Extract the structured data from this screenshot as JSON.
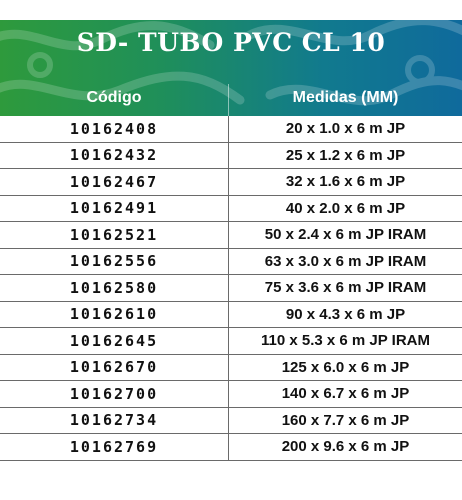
{
  "title": "SD- TUBO PVC CL 10",
  "columns": {
    "code": "Código",
    "measure": "Medidas (MM)"
  },
  "colors": {
    "header_start": "#2e9a3c",
    "header_end": "#0f6a9c",
    "text": "#111111"
  },
  "rows": [
    {
      "code": "10162408",
      "measure": "20 x 1.0 x 6 m JP"
    },
    {
      "code": "10162432",
      "measure": "25 x 1.2 x 6 m JP"
    },
    {
      "code": "10162467",
      "measure": "32 x 1.6 x 6 m JP"
    },
    {
      "code": "10162491",
      "measure": "40 x 2.0 x 6 m JP"
    },
    {
      "code": "10162521",
      "measure": "50 x 2.4 x 6 m JP IRAM"
    },
    {
      "code": "10162556",
      "measure": "63 x 3.0 x 6 m JP IRAM"
    },
    {
      "code": "10162580",
      "measure": "75 x 3.6 x 6 m JP IRAM"
    },
    {
      "code": "10162610",
      "measure": "90 x 4.3 x 6 m JP"
    },
    {
      "code": "10162645",
      "measure": "110 x 5.3 x 6 m JP IRAM"
    },
    {
      "code": "10162670",
      "measure": "125 x 6.0 x 6 m JP"
    },
    {
      "code": "10162700",
      "measure": "140 x 6.7 x 6 m JP"
    },
    {
      "code": "10162734",
      "measure": "160 x 7.7 x 6 m JP"
    },
    {
      "code": "10162769",
      "measure": "200 x 9.6 x 6 m JP"
    }
  ]
}
